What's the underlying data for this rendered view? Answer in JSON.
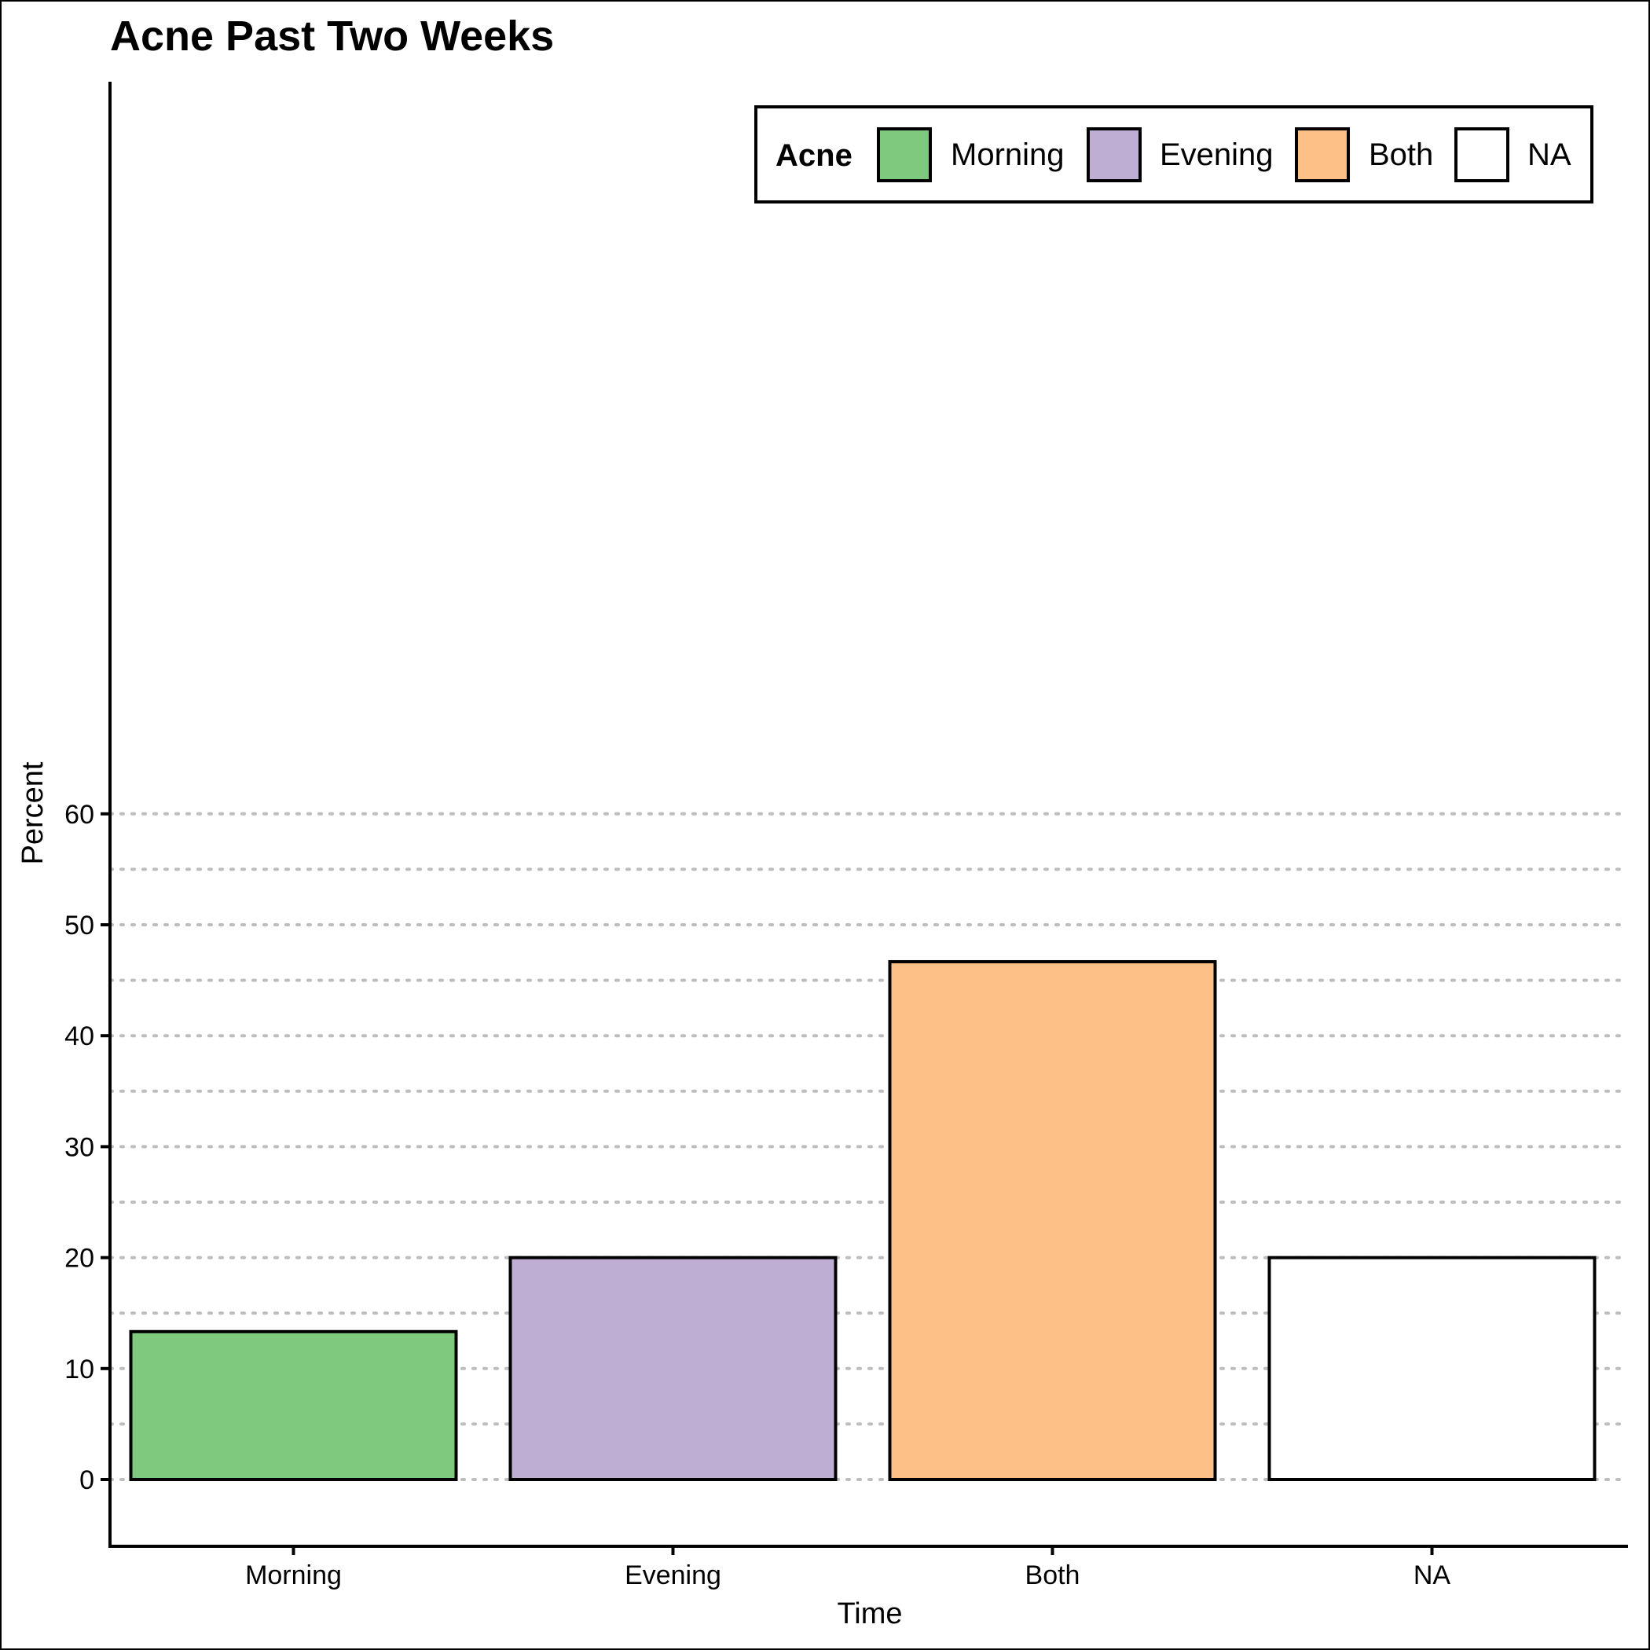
{
  "chart_data": {
    "type": "bar",
    "title": "Acne Past Two Weeks",
    "xlabel": "Time",
    "ylabel": "Percent",
    "categories": [
      "Morning",
      "Evening",
      "Both",
      "NA"
    ],
    "values": [
      13.33,
      20.0,
      46.67,
      20.0
    ],
    "colors": [
      "#7FC97F",
      "#BEAED4",
      "#FDC086",
      "#FFFFFF"
    ],
    "ylim": [
      -3,
      63
    ],
    "yticks": [
      0,
      10,
      20,
      30,
      40,
      50,
      60
    ],
    "grid": "horizontal dotted",
    "legend": {
      "title": "Acne",
      "placement": "top-right",
      "entries": [
        {
          "label": "Morning",
          "color": "#7FC97F"
        },
        {
          "label": "Evening",
          "color": "#BEAED4"
        },
        {
          "label": "Both",
          "color": "#FDC086"
        },
        {
          "label": "NA",
          "color": "#FFFFFF"
        }
      ]
    }
  }
}
